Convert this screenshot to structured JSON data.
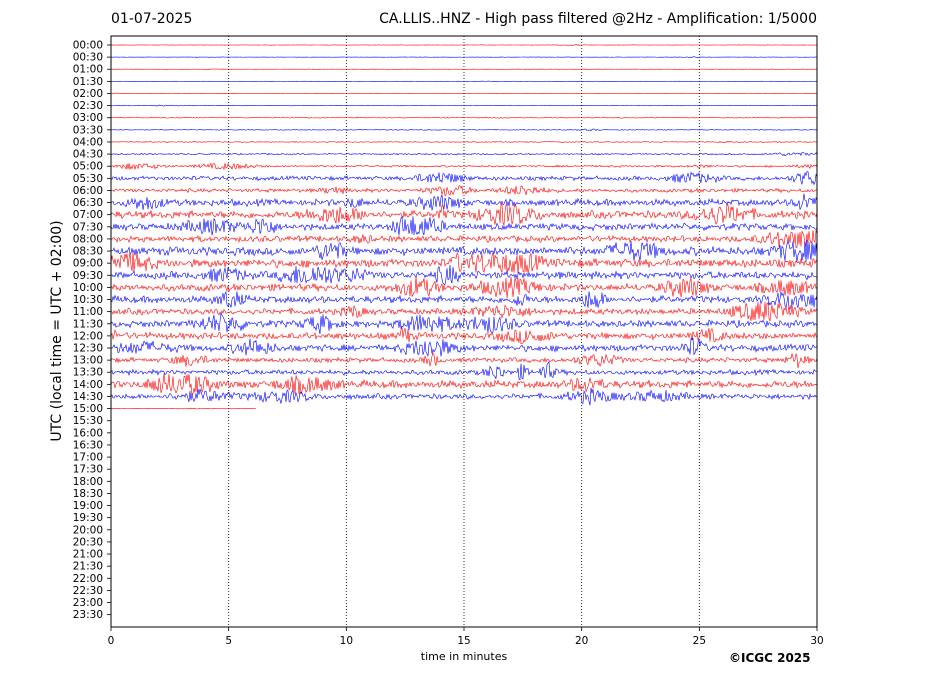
{
  "header": {
    "date": "01-07-2025",
    "title": "CA.LLIS..HNZ - High pass filtered @2Hz - Amplification: 1/5000"
  },
  "footer": {
    "credit": "©ICGC 2025"
  },
  "chart_data": {
    "type": "line",
    "title": "CA.LLIS..HNZ - High pass filtered @2Hz - Amplification: 1/5000",
    "xlabel": "time in minutes",
    "ylabel": "UTC (local time = UTC + 02:00)",
    "xlim": [
      0,
      30
    ],
    "x_ticks": [
      0,
      5,
      10,
      15,
      20,
      25,
      30
    ],
    "vertical_gridlines_at": [
      5,
      10,
      15,
      20,
      25
    ],
    "row_labels": [
      "00:00",
      "00:30",
      "01:00",
      "01:30",
      "02:00",
      "02:30",
      "03:00",
      "03:30",
      "04:00",
      "04:30",
      "05:00",
      "05:30",
      "06:00",
      "06:30",
      "07:00",
      "07:30",
      "08:00",
      "08:30",
      "09:00",
      "09:30",
      "10:00",
      "10:30",
      "11:00",
      "11:30",
      "12:00",
      "12:30",
      "13:00",
      "13:30",
      "14:00",
      "14:30",
      "15:00",
      "15:30",
      "16:00",
      "16:30",
      "17:00",
      "17:30",
      "18:00",
      "18:30",
      "19:00",
      "19:30",
      "20:00",
      "20:30",
      "21:00",
      "21:30",
      "22:00",
      "22:30",
      "23:00",
      "23:30"
    ],
    "trace_colors": [
      "#ff0000",
      "#0000ff"
    ],
    "last_row_end_minutes": 6.2,
    "trace_amplitude_level": [
      0.2,
      0.2,
      0.2,
      0.2,
      0.2,
      0.3,
      0.5,
      0.5,
      0.6,
      0.9,
      1.2,
      2.5,
      2.2,
      4,
      4.5,
      4,
      3.6,
      5,
      5,
      4.5,
      4.3,
      4.2,
      3.6,
      4,
      4,
      4,
      2.8,
      3,
      4.5,
      3.2,
      0.3
    ]
  }
}
